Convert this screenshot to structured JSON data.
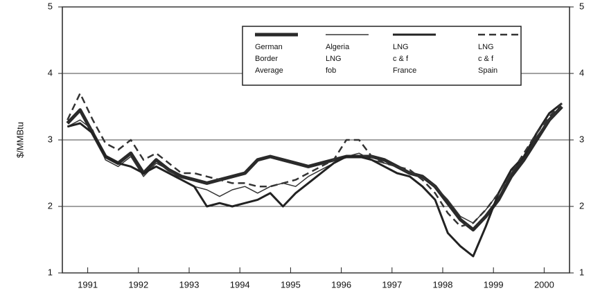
{
  "chart_data": {
    "type": "line",
    "y_label": "$/MMBtu",
    "x": [
      1991.1,
      1991.35,
      1991.6,
      1991.85,
      1992.1,
      1992.35,
      1992.6,
      1992.85,
      1993.1,
      1993.35,
      1993.6,
      1993.85,
      1994.1,
      1994.35,
      1994.6,
      1994.85,
      1995.1,
      1995.35,
      1995.6,
      1995.85,
      1996.1,
      1996.35,
      1996.6,
      1996.85,
      1997.1,
      1997.35,
      1997.6,
      1997.85,
      1998.1,
      1998.35,
      1998.6,
      1998.85,
      1999.1,
      1999.35,
      1999.6,
      1999.85,
      2000.1,
      2000.35,
      2000.6,
      2000.85
    ],
    "series": [
      {
        "name": "German\nBorder\nAverage",
        "color": "#2a2a2a",
        "line_width": 5,
        "dash": false,
        "values": [
          3.25,
          3.45,
          3.1,
          2.75,
          2.65,
          2.8,
          2.5,
          2.7,
          2.55,
          2.45,
          2.4,
          2.35,
          2.4,
          2.45,
          2.5,
          2.7,
          2.75,
          2.7,
          2.65,
          2.6,
          2.65,
          2.7,
          2.75,
          2.75,
          2.75,
          2.7,
          2.6,
          2.5,
          2.45,
          2.3,
          2.05,
          1.8,
          1.65,
          1.85,
          2.1,
          2.45,
          2.7,
          3.0,
          3.3,
          3.5
        ]
      },
      {
        "name": "Algeria\nLNG\nfob",
        "color": "#333333",
        "line_width": 1.5,
        "dash": false,
        "values": [
          3.2,
          3.3,
          3.15,
          2.7,
          2.6,
          2.75,
          2.45,
          2.65,
          2.55,
          2.4,
          2.3,
          2.25,
          2.15,
          2.25,
          2.3,
          2.2,
          2.3,
          2.35,
          2.3,
          2.45,
          2.55,
          2.65,
          2.75,
          2.8,
          2.7,
          2.65,
          2.6,
          2.5,
          2.45,
          2.3,
          2.1,
          1.85,
          1.75,
          1.95,
          2.2,
          2.5,
          2.75,
          3.05,
          3.3,
          3.5
        ]
      },
      {
        "name": "LNG\nc & f\nFrance",
        "color": "#222222",
        "line_width": 3,
        "dash": false,
        "values": [
          3.2,
          3.25,
          3.1,
          2.75,
          2.65,
          2.6,
          2.5,
          2.6,
          2.5,
          2.4,
          2.3,
          2.0,
          2.05,
          2.0,
          2.05,
          2.1,
          2.2,
          2.0,
          2.2,
          2.35,
          2.5,
          2.65,
          2.75,
          2.75,
          2.7,
          2.6,
          2.5,
          2.45,
          2.3,
          2.1,
          1.6,
          1.4,
          1.25,
          1.7,
          2.2,
          2.55,
          2.75,
          3.1,
          3.4,
          3.55
        ]
      },
      {
        "name": "LNG\nc & f\nSpain",
        "color": "#333333",
        "line_width": 2.5,
        "dash": true,
        "values": [
          3.3,
          3.7,
          3.3,
          2.95,
          2.85,
          3.0,
          2.7,
          2.8,
          2.65,
          2.5,
          2.5,
          2.45,
          2.4,
          2.35,
          2.35,
          2.3,
          2.3,
          2.35,
          2.4,
          2.5,
          2.6,
          2.7,
          3.0,
          3.0,
          2.75,
          2.65,
          2.6,
          2.55,
          2.4,
          2.2,
          1.9,
          1.7,
          1.75,
          1.95,
          2.2,
          2.5,
          2.8,
          3.1,
          3.35,
          3.55
        ]
      }
    ],
    "xlim": [
      1991,
      2001
    ],
    "xticks": [
      {
        "value": 1991.5,
        "label": "1991"
      },
      {
        "value": 1992.5,
        "label": "1992"
      },
      {
        "value": 1993.5,
        "label": "1993"
      },
      {
        "value": 1994.5,
        "label": "1994"
      },
      {
        "value": 1995.5,
        "label": "1995"
      },
      {
        "value": 1996.5,
        "label": "1996"
      },
      {
        "value": 1997.5,
        "label": "1997"
      },
      {
        "value": 1998.5,
        "label": "1998"
      },
      {
        "value": 1999.5,
        "label": "1999"
      },
      {
        "value": 2000.5,
        "label": "2000"
      }
    ],
    "ylim": [
      1,
      5
    ],
    "yticks": [
      1,
      2,
      3,
      4,
      5
    ],
    "y2lim": [
      1,
      5
    ],
    "y2ticks": [
      1,
      2,
      3,
      4,
      5
    ],
    "grid": true,
    "legend": "top-right"
  }
}
